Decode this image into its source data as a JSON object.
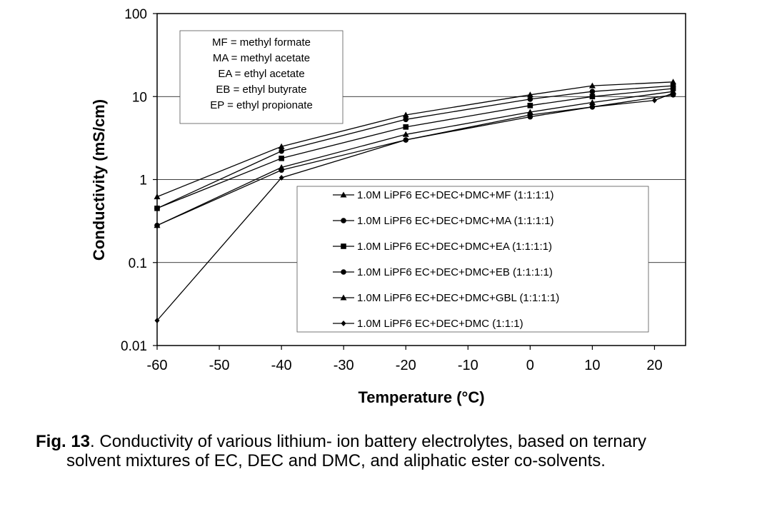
{
  "chart_data": {
    "type": "line",
    "xlabel": "Temperature (°C)",
    "ylabel": "Conductivity (mS/cm)",
    "xlim": [
      -60,
      25
    ],
    "ylim": [
      0.01,
      100
    ],
    "y_scale": "log",
    "x_ticks": [
      "-60",
      "-50",
      "-40",
      "-30",
      "-20",
      "-10",
      "0",
      "10",
      "20"
    ],
    "y_ticks": [
      "0.01",
      "0.1",
      "1",
      "10",
      "100"
    ],
    "grid": "horizontal",
    "legend_position": "bottom-right",
    "abbreviations": [
      "MF = methyl formate",
      "MA = methyl acetate",
      "EA = ethyl acetate",
      "EB = ethyl butyrate",
      "EP = ethyl propionate"
    ],
    "series": [
      {
        "name": "1.0M LiPF6 EC+DEC+DMC+MF (1:1:1:1)",
        "marker": "triangle",
        "x": [
          -60,
          -40,
          -20,
          0,
          10,
          23
        ],
        "y": [
          0.62,
          2.5,
          6.0,
          10.5,
          13.5,
          15.0
        ]
      },
      {
        "name": "1.0M LiPF6 EC+DEC+DMC+MA (1:1:1:1)",
        "marker": "circle",
        "x": [
          -60,
          -40,
          -20,
          0,
          10,
          23
        ],
        "y": [
          0.45,
          2.2,
          5.3,
          9.3,
          11.5,
          13.5
        ]
      },
      {
        "name": "1.0M LiPF6 EC+DEC+DMC+EA (1:1:1:1)",
        "marker": "square",
        "x": [
          -60,
          -40,
          -20,
          0,
          10,
          23
        ],
        "y": [
          0.45,
          1.8,
          4.3,
          7.8,
          10.0,
          12.5
        ]
      },
      {
        "name": "1.0M LiPF6 EC+DEC+DMC+EB (1:1:1:1)",
        "marker": "circle",
        "x": [
          -60,
          -40,
          -20,
          0,
          10,
          23
        ],
        "y": [
          0.28,
          1.3,
          3.0,
          5.7,
          7.5,
          10.5
        ]
      },
      {
        "name": "1.0M LiPF6 EC+DEC+DMC+GBL (1:1:1:1)",
        "marker": "triangle",
        "x": [
          -60,
          -40,
          -20,
          0,
          10,
          23
        ],
        "y": [
          0.28,
          1.4,
          3.5,
          6.5,
          8.5,
          11.5
        ]
      },
      {
        "name": "1.0M LiPF6 EC+DEC+DMC (1:1:1)",
        "marker": "diamond",
        "x": [
          -60,
          -40,
          -20,
          0,
          10,
          20,
          23
        ],
        "y": [
          0.02,
          1.05,
          3.0,
          6.0,
          7.5,
          9.0,
          11.0
        ]
      }
    ]
  },
  "caption": {
    "fig_label": "Fig. 13",
    "line1": ".  Conductivity of various lithium- ion battery electrolytes, based on ternary",
    "line2": "solvent mixtures of EC, DEC and DMC, and aliphatic ester co-solvents."
  }
}
